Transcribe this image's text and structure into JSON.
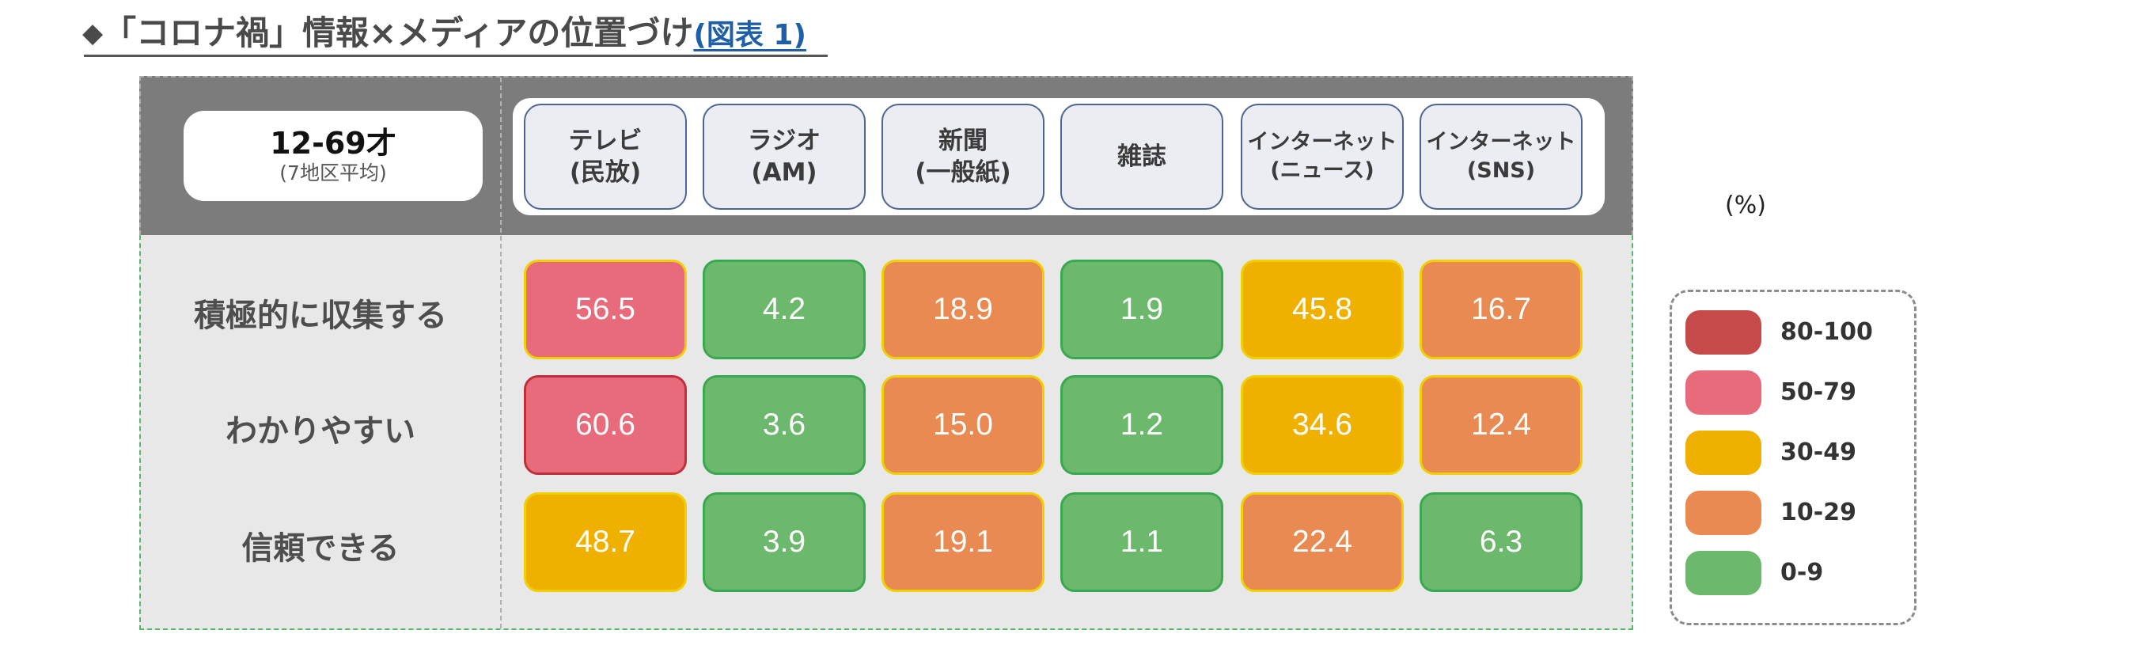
{
  "heading": {
    "diamond": "◆",
    "main": "「コロナ禍」情報×メディアの位置づけ",
    "ref": "(図表 1)"
  },
  "corner": {
    "title": "12-69才",
    "subtitle": "(7地区平均)"
  },
  "unit_label": "(%)",
  "legend": {
    "items": [
      {
        "label": "80-100",
        "color": "#c74a4a"
      },
      {
        "label": "50-79",
        "color": "#e86b7c"
      },
      {
        "label": "30-49",
        "color": "#f0b000"
      },
      {
        "label": "10-29",
        "color": "#e88a52"
      },
      {
        "label": "0-9",
        "color": "#6cb86c"
      }
    ]
  },
  "chart_data": {
    "type": "heatmap",
    "columns": [
      {
        "line1": "テレビ",
        "line2": "(民放)"
      },
      {
        "line1": "ラジオ",
        "line2": "(AM)"
      },
      {
        "line1": "新聞",
        "line2": "(一般紙)"
      },
      {
        "line1": "雑誌",
        "line2": ""
      },
      {
        "line1": "インターネット",
        "line2": "(ニュース)"
      },
      {
        "line1": "インターネット",
        "line2": "(SNS)"
      }
    ],
    "rows": [
      "積極的に収集する",
      "わかりやすい",
      "信頼できる"
    ],
    "values": [
      [
        "56.5",
        "4.2",
        "18.9",
        "1.9",
        "45.8",
        "16.7"
      ],
      [
        "60.6",
        "3.6",
        "15.0",
        "1.2",
        "34.6",
        "12.4"
      ],
      [
        "48.7",
        "3.9",
        "19.1",
        "1.1",
        "22.4",
        "6.3"
      ]
    ]
  }
}
